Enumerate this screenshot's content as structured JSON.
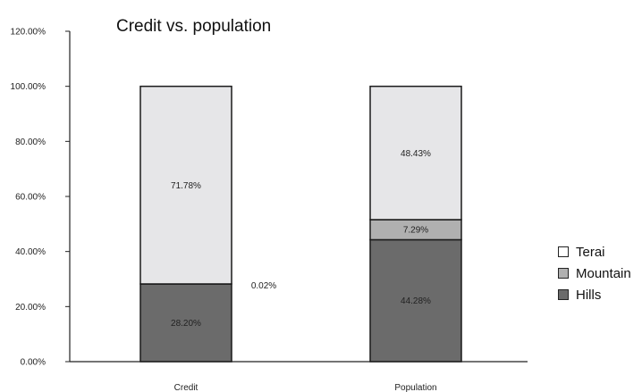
{
  "chart_data": {
    "type": "bar",
    "stacked": true,
    "title": "Credit vs. population",
    "xlabel": "",
    "ylabel": "",
    "categories": [
      "Credit",
      "Population"
    ],
    "ylim": [
      0,
      120
    ],
    "yticks": [
      "0.00%",
      "20.00%",
      "40.00%",
      "60.00%",
      "80.00%",
      "100.00%",
      "120.00%"
    ],
    "series": [
      {
        "name": "Hills",
        "values": [
          28.2,
          44.28
        ],
        "labels": [
          "28.20%",
          "44.28%"
        ],
        "color": "#6b6b6b"
      },
      {
        "name": "Mountain",
        "values": [
          0.02,
          7.29
        ],
        "labels": [
          "0.02%",
          "7.29%"
        ],
        "color": "#b0b0b0"
      },
      {
        "name": "Terai",
        "values": [
          71.78,
          48.43
        ],
        "labels": [
          "71.78%",
          "48.43%"
        ],
        "color": "#e6e6e8"
      }
    ],
    "legend_order": [
      "Terai",
      "Mountain",
      "Hills"
    ],
    "legend_position": "right",
    "grid": false
  }
}
